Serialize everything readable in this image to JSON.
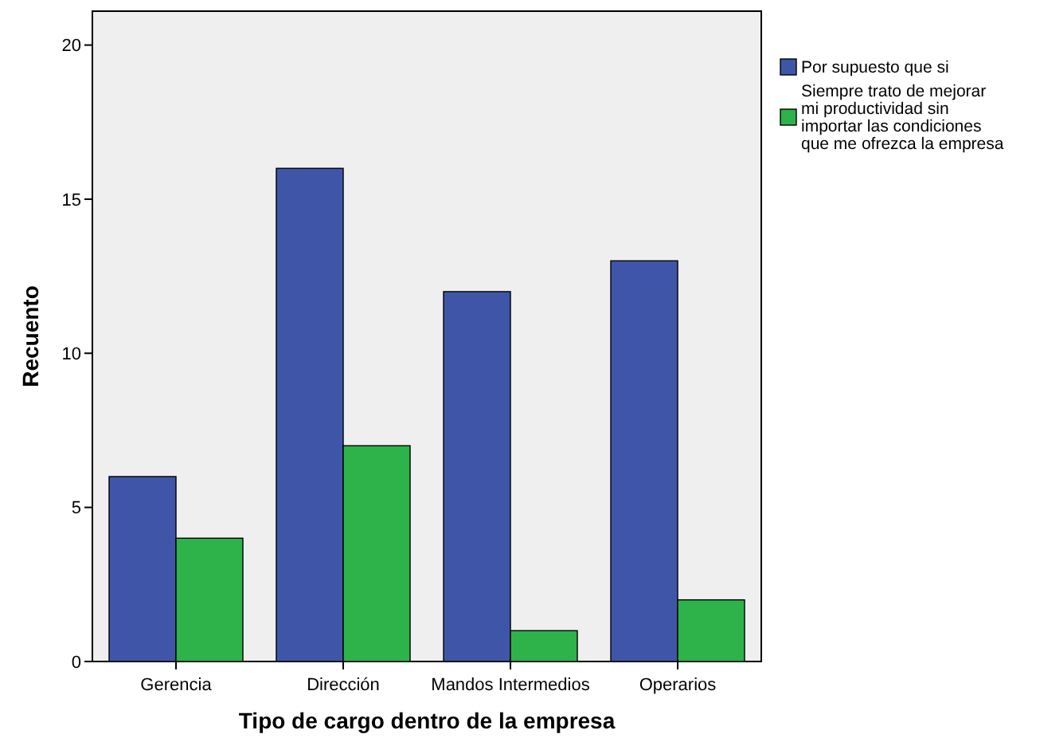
{
  "chart_data": {
    "type": "bar",
    "xlabel": "Tipo de cargo dentro de la empresa",
    "ylabel": "Recuento",
    "categories": [
      "Gerencia",
      "Dirección",
      "Mandos Intermedios",
      "Operarios"
    ],
    "series": [
      {
        "name": "Por supuesto que si",
        "color": "#3f56a8",
        "values": [
          6,
          16,
          12,
          13
        ]
      },
      {
        "name": "Siempre trato de mejorar mi productividad sin importar las condiciones que me ofrezca la empresa",
        "color": "#2db34a",
        "values": [
          4,
          7,
          1,
          2
        ]
      }
    ],
    "ylim": [
      0,
      21.1
    ],
    "yticks": [
      0,
      5,
      10,
      15,
      20
    ],
    "grid": false,
    "legend": "right"
  }
}
